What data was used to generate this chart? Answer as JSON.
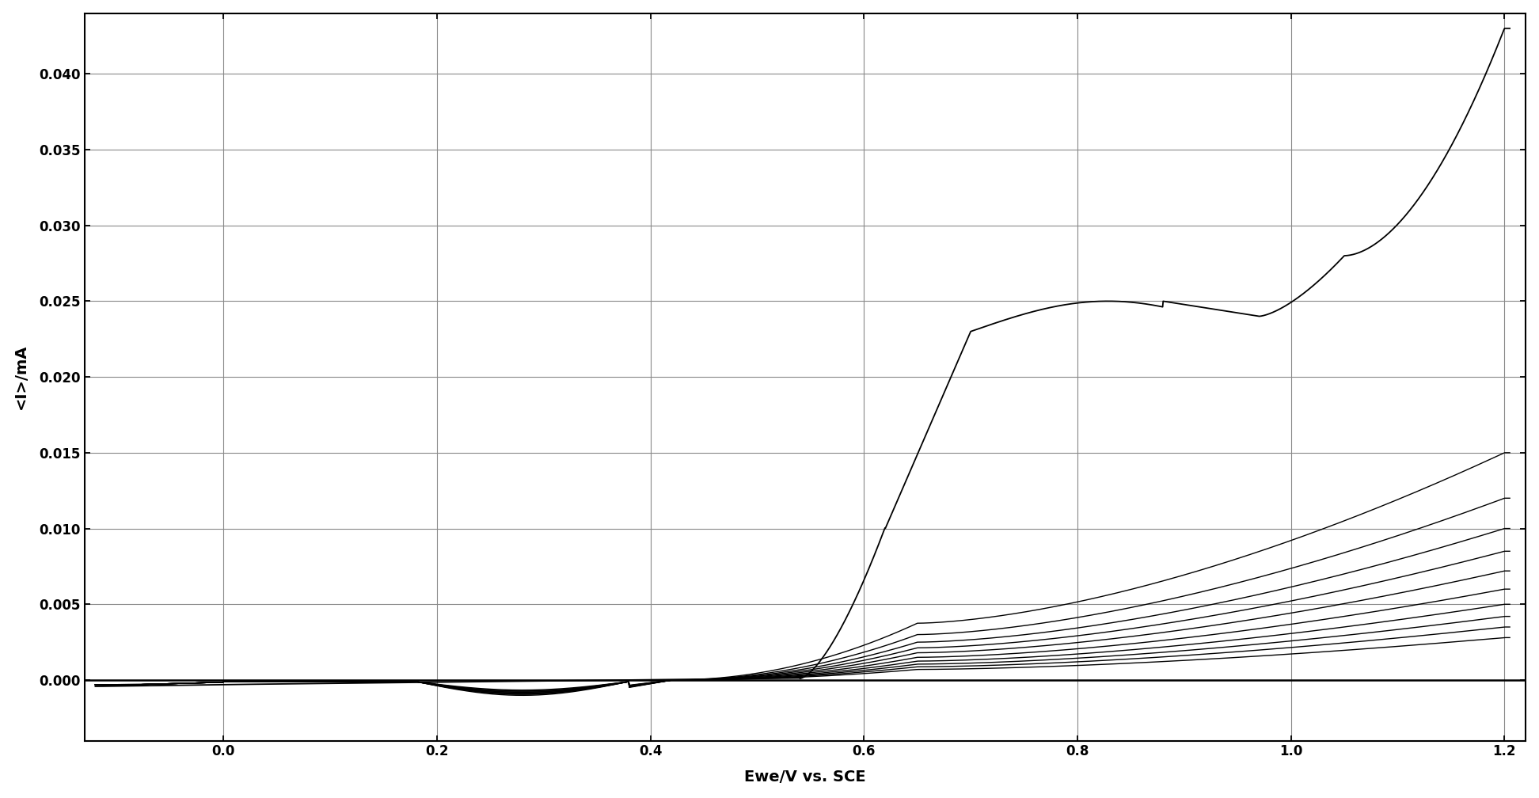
{
  "title": "",
  "xlabel": "Ewe/V vs. SCE",
  "ylabel": "<I>/mA",
  "xlim": [
    -0.13,
    1.22
  ],
  "ylim": [
    -0.004,
    0.044
  ],
  "xticks": [
    0,
    0.2,
    0.4,
    0.6,
    0.8,
    1.0,
    1.2
  ],
  "yticks": [
    0,
    0.005,
    0.01,
    0.015,
    0.02,
    0.025,
    0.03,
    0.035,
    0.04
  ],
  "background_color": "#ffffff",
  "line_color": "#000000",
  "grid_color": "#888888"
}
